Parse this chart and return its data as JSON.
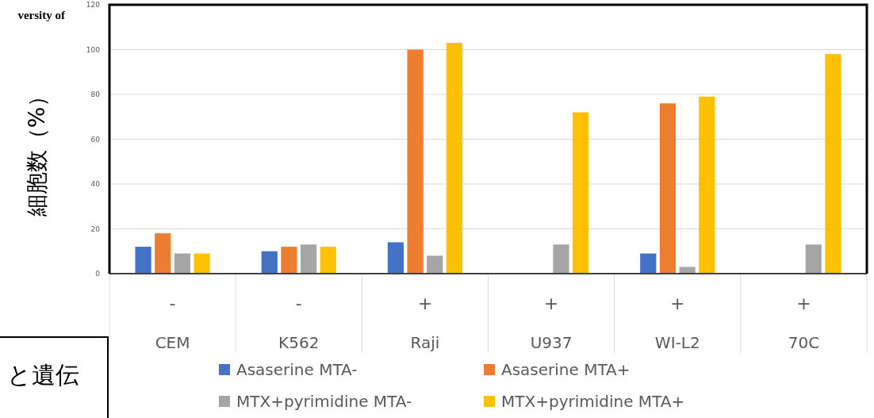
{
  "chart_data": {
    "type": "bar",
    "ylabel": "細胞数（%）",
    "categories": [
      "CEM",
      "K562",
      "Raji",
      "U937",
      "WI-L2",
      "70C"
    ],
    "series": [
      {
        "name": "Asaserine MTA-",
        "color": "#4472c4",
        "values": [
          12,
          10,
          14,
          0,
          9,
          0
        ]
      },
      {
        "name": "Asaserine MTA+",
        "color": "#ed7d31",
        "values": [
          18,
          12,
          100,
          0,
          76,
          0
        ]
      },
      {
        "name": "MTX+pyrimidine MTA-",
        "color": "#a5a5a5",
        "values": [
          9,
          13,
          8,
          13,
          3,
          13
        ]
      },
      {
        "name": "MTX+pyrimidine MTA+",
        "color": "#ffc000",
        "values": [
          9,
          12,
          103,
          72,
          79,
          98
        ]
      }
    ],
    "ylim": [
      0,
      120
    ],
    "yticks": [
      0,
      20,
      40,
      60,
      80,
      100,
      120
    ],
    "grid": "y",
    "legend": "bottom",
    "annotations": [
      "-",
      "-",
      "+",
      "+",
      "+",
      "+",
      "versity of",
      "と遺伝"
    ]
  }
}
